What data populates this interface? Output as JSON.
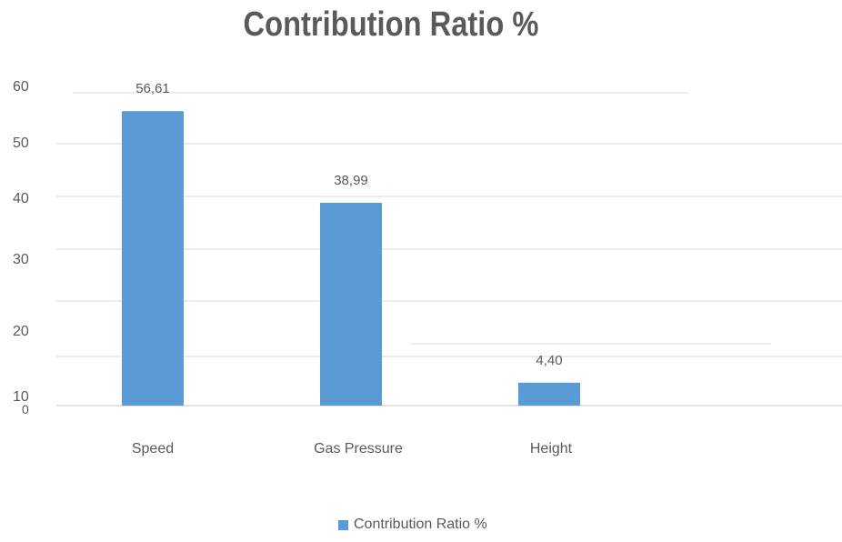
{
  "chart_data": {
    "type": "bar",
    "title": "Contribution Ratio %",
    "categories": [
      "Speed",
      "Gas Pressure",
      "Height"
    ],
    "series": [
      {
        "name": "Contribution Ratio %",
        "values": [
          56.61,
          38.99,
          4.4
        ],
        "data_labels": [
          "56,61",
          "38,99",
          "4,40"
        ]
      }
    ],
    "y_ticks": [
      "10",
      "20",
      "30",
      "40",
      "50",
      "60"
    ],
    "y_zero_label": "0",
    "ylim": [
      0,
      60
    ],
    "grid": true,
    "legend_position": "bottom",
    "bar_color": "#5b9bd5",
    "axis_text_color": "#595959",
    "grid_color": "#d9d9d9"
  }
}
